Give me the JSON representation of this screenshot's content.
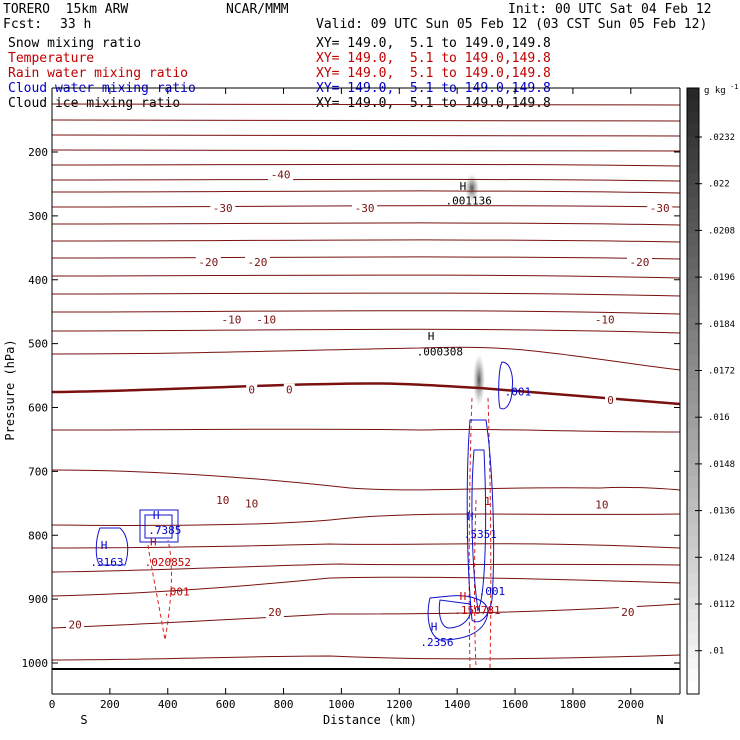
{
  "header": {
    "model": "TORERO  15km ARW",
    "center": "NCAR/MMM",
    "init": "Init: 00 UTC Sat 04 Feb 12",
    "fcst_label": "Fcst:",
    "fcst_value": "33 h",
    "valid": "Valid: 09 UTC Sun 05 Feb 12 (03 CST Sun 05 Feb 12)"
  },
  "fields": [
    {
      "name": "Snow mixing ratio",
      "xy": "XY= 149.0,  5.1 to 149.0,149.8",
      "color": "#000000"
    },
    {
      "name": "Temperature",
      "xy": "XY= 149.0,  5.1 to 149.0,149.8",
      "color": "#c00000"
    },
    {
      "name": "Rain water mixing ratio",
      "xy": "XY= 149.0,  5.1 to 149.0,149.8",
      "color": "#c00000"
    },
    {
      "name": "Cloud water mixing ratio",
      "xy": "XY= 149.0,  5.1 to 149.0,149.8",
      "color": "#0000cc"
    },
    {
      "name": "Cloud ice mixing ratio",
      "xy": "XY= 149.0,  5.1 to 149.0,149.8",
      "color": "#000000"
    }
  ],
  "chart_data": {
    "type": "cross-section",
    "xlabel": "Distance (km)",
    "ylabel": "Pressure (hPa)",
    "xlim": [
      0,
      2170
    ],
    "ylim": [
      1050,
      100
    ],
    "x_ticks": [
      0,
      200,
      400,
      600,
      800,
      1000,
      1200,
      1400,
      1600,
      1800,
      2000
    ],
    "y_ticks": [
      200,
      300,
      400,
      500,
      600,
      700,
      800,
      900,
      1000
    ],
    "end_labels": {
      "left": "S",
      "right": "N"
    },
    "colorbar": {
      "unit": "g kg",
      "ticks": [
        ".0232",
        ".022",
        ".0208",
        ".0196",
        ".0184",
        ".0172",
        ".016",
        ".0148",
        ".0136",
        ".0124",
        ".0112",
        ".01"
      ]
    },
    "temperature_labels": [
      {
        "x": 790,
        "p": 235,
        "text": "-40"
      },
      {
        "x": 590,
        "p": 288,
        "text": "-30"
      },
      {
        "x": 1080,
        "p": 288,
        "text": "-30"
      },
      {
        "x": 2100,
        "p": 288,
        "text": "-30"
      },
      {
        "x": 540,
        "p": 372,
        "text": "-20"
      },
      {
        "x": 710,
        "p": 372,
        "text": "-20"
      },
      {
        "x": 2030,
        "p": 372,
        "text": "-20"
      },
      {
        "x": 620,
        "p": 462,
        "text": "-10"
      },
      {
        "x": 740,
        "p": 462,
        "text": "-10"
      },
      {
        "x": 1910,
        "p": 462,
        "text": "-10"
      },
      {
        "x": 690,
        "p": 572,
        "text": "0"
      },
      {
        "x": 820,
        "p": 572,
        "text": "0"
      },
      {
        "x": 1930,
        "p": 588,
        "text": "0"
      },
      {
        "x": 590,
        "p": 745,
        "text": "10"
      },
      {
        "x": 690,
        "p": 750,
        "text": "10"
      },
      {
        "x": 1900,
        "p": 752,
        "text": "10"
      },
      {
        "x": 80,
        "p": 940,
        "text": "20"
      },
      {
        "x": 770,
        "p": 920,
        "text": "20"
      },
      {
        "x": 1990,
        "p": 920,
        "text": "20"
      }
    ],
    "annotations": [
      {
        "x": 1420,
        "p": 253,
        "text": "H",
        "color": "#000000"
      },
      {
        "x": 1440,
        "p": 276,
        "text": ".001136",
        "color": "#000000"
      },
      {
        "x": 1310,
        "p": 488,
        "text": "H",
        "color": "#000000"
      },
      {
        "x": 1340,
        "p": 512,
        "text": ".000308",
        "color": "#000000"
      },
      {
        "x": 1610,
        "p": 575,
        "text": ".001",
        "color": "#0000cc"
      },
      {
        "x": 360,
        "p": 768,
        "text": "H",
        "color": "#0000cc"
      },
      {
        "x": 390,
        "p": 792,
        "text": ".7385",
        "color": "#0000cc"
      },
      {
        "x": 350,
        "p": 810,
        "text": "H",
        "color": "#c00000"
      },
      {
        "x": 400,
        "p": 842,
        "text": ".020852",
        "color": "#c00000"
      },
      {
        "x": 430,
        "p": 888,
        "text": ".001",
        "color": "#c00000"
      },
      {
        "x": 180,
        "p": 815,
        "text": "H",
        "color": "#0000cc"
      },
      {
        "x": 190,
        "p": 842,
        "text": ".3163",
        "color": "#0000cc"
      },
      {
        "x": 1505,
        "p": 746,
        "text": "1",
        "color": "#c00000"
      },
      {
        "x": 1445,
        "p": 770,
        "text": "H",
        "color": "#0000cc"
      },
      {
        "x": 1480,
        "p": 798,
        "text": ".5351",
        "color": "#0000cc"
      },
      {
        "x": 1520,
        "p": 887,
        "text": ".001",
        "color": "#0000cc"
      },
      {
        "x": 1420,
        "p": 895,
        "text": "H",
        "color": "#c00000"
      },
      {
        "x": 1470,
        "p": 917,
        "text": ".150781",
        "color": "#c00000"
      },
      {
        "x": 1320,
        "p": 943,
        "text": "H",
        "color": "#0000cc"
      },
      {
        "x": 1330,
        "p": 967,
        "text": ".2356",
        "color": "#0000cc"
      }
    ]
  }
}
